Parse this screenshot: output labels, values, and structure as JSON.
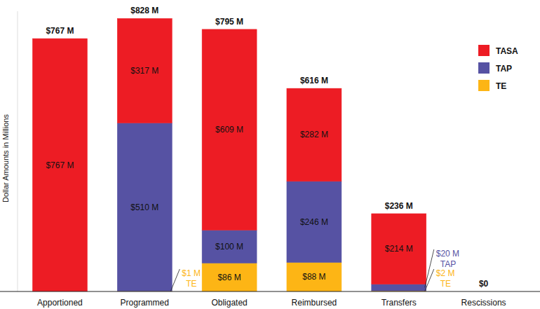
{
  "chart_data": {
    "type": "bar",
    "stacked": true,
    "data_labels": true,
    "tick_labels": false,
    "legend": "right",
    "grid": false,
    "y_label": "Dollar Amounts in Millions",
    "categories": [
      "Apportioned",
      "Programmed",
      "Obligated",
      "Reimbursed",
      "Transfers",
      "Rescissions"
    ],
    "ylim": [
      0,
      850
    ],
    "yticks": [],
    "series": [
      {
        "name": "TE",
        "color": "#fdb515",
        "values": [
          0,
          1,
          86,
          88,
          2,
          0
        ],
        "value_labels": [
          null,
          "$1 M",
          "$86 M",
          "$88 M",
          "$2 M",
          null
        ]
      },
      {
        "name": "TAP",
        "color": "#5652a3",
        "values": [
          0,
          510,
          100,
          246,
          20,
          0
        ],
        "value_labels": [
          null,
          "$510 M",
          "$100 M",
          "$246 M",
          "$20 M",
          null
        ]
      },
      {
        "name": "TASA",
        "color": "#ed1c24",
        "values": [
          767,
          317,
          609,
          282,
          214,
          0
        ],
        "value_labels": [
          "$767 M",
          "$317 M",
          "$609 M",
          "$282 M",
          "$214 M",
          null
        ]
      }
    ],
    "totals": [
      767,
      828,
      795,
      616,
      236,
      0
    ],
    "total_labels": [
      "$767 M",
      "$828 M",
      "$795 M",
      "$616 M",
      "$236 M",
      "$0"
    ]
  }
}
